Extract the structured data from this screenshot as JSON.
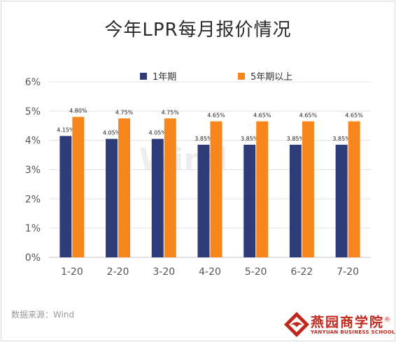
{
  "chart_data": {
    "type": "bar",
    "title": "今年LPR每月报价情况",
    "categories": [
      "1-20",
      "2-20",
      "3-20",
      "4-20",
      "5-20",
      "6-22",
      "7-20"
    ],
    "series": [
      {
        "name": "1年期",
        "color": "#2e3d7a",
        "values": [
          4.15,
          4.05,
          4.05,
          3.85,
          3.85,
          3.85,
          3.85
        ],
        "labels": [
          "4.15%",
          "4.05%",
          "4.05%",
          "3.85%",
          "3.85%",
          "3.85%",
          "3.85%"
        ]
      },
      {
        "name": "5年期以上",
        "color": "#f7861c",
        "values": [
          4.8,
          4.75,
          4.75,
          4.65,
          4.65,
          4.65,
          4.65
        ],
        "labels": [
          "4.80%",
          "4.75%",
          "4.75%",
          "4.65%",
          "4.65%",
          "4.65%",
          "4.65%"
        ]
      }
    ],
    "yticks": [
      "0%",
      "1%",
      "2%",
      "3%",
      "4%",
      "5%",
      "6%"
    ],
    "ylim": [
      0,
      6
    ],
    "grid": true,
    "legend_position": "top-center"
  },
  "source_text": "数据来源：Wind",
  "watermark": "Wind",
  "logo": {
    "name_cn": "燕园商学院",
    "registered": "®",
    "name_en": "YANYUAN BUSINESS SCHOOL"
  }
}
